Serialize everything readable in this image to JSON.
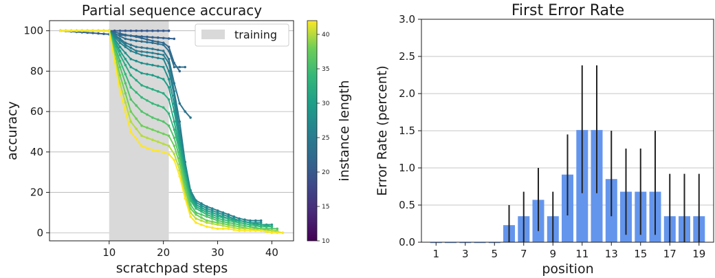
{
  "chart_data": [
    {
      "type": "line",
      "title": "Partial sequence accuracy",
      "xlabel": "scratchpad steps",
      "ylabel": "accuracy",
      "xlim": [
        -1,
        44
      ],
      "ylim": [
        -4,
        105
      ],
      "xticks": [
        10,
        20,
        30,
        40
      ],
      "yticks": [
        0,
        20,
        40,
        60,
        80,
        100
      ],
      "grid": "horizontal",
      "legend": {
        "placement": "top-right",
        "entries": [
          "training"
        ]
      },
      "training_region": [
        10,
        21
      ],
      "colorbar": {
        "label": "instance length",
        "range": [
          10,
          42
        ],
        "ticks": [
          10,
          15,
          20,
          25,
          30,
          35,
          40
        ],
        "colormap": "viridis"
      },
      "series": [
        {
          "length": 20,
          "x": [
            1,
            21
          ],
          "values": [
            100,
            100
          ]
        },
        {
          "length": 21,
          "x": [
            1,
            22
          ],
          "values": [
            100,
            96
          ]
        },
        {
          "length": 22,
          "x": [
            1,
            10,
            13,
            15,
            18,
            20,
            21,
            22,
            23
          ],
          "values": [
            100,
            100,
            98,
            97,
            95,
            94,
            92,
            84,
            80
          ]
        },
        {
          "length": 23,
          "x": [
            1,
            10,
            13,
            15,
            18,
            20,
            21,
            22,
            23,
            24
          ],
          "values": [
            100,
            100,
            96,
            95,
            94,
            93,
            90,
            82,
            82,
            82
          ]
        },
        {
          "length": 24,
          "x": [
            1,
            10,
            13,
            15,
            18,
            20,
            21,
            22,
            23,
            24,
            25
          ],
          "values": [
            100,
            100,
            94,
            92,
            91,
            90,
            86,
            74,
            64,
            60,
            57
          ]
        },
        {
          "length": 25,
          "x": [
            1,
            10,
            13,
            15,
            18,
            20,
            21,
            22,
            23,
            24,
            25,
            26
          ],
          "values": [
            100,
            100,
            93,
            90,
            89,
            88,
            84,
            70,
            55,
            35,
            20,
            14
          ]
        },
        {
          "length": 26,
          "x": [
            1,
            10,
            12,
            14,
            16,
            18,
            20,
            21,
            22,
            23,
            24,
            25,
            26,
            28,
            30,
            32,
            34,
            36,
            38
          ],
          "values": [
            100,
            100,
            94,
            90,
            88,
            87,
            86,
            80,
            68,
            50,
            35,
            21,
            16,
            13,
            11,
            9,
            7,
            6,
            6
          ]
        },
        {
          "length": 28,
          "x": [
            1,
            10,
            12,
            14,
            16,
            18,
            20,
            21,
            22,
            23,
            24,
            25,
            26,
            28,
            30,
            32,
            34,
            36,
            38
          ],
          "values": [
            100,
            100,
            92,
            86,
            84,
            83,
            82,
            76,
            64,
            48,
            33,
            20,
            15,
            12,
            10,
            8,
            6,
            5,
            5
          ]
        },
        {
          "length": 30,
          "x": [
            1,
            10,
            12,
            14,
            16,
            18,
            20,
            21,
            22,
            23,
            24,
            25,
            26,
            28,
            30,
            32,
            34,
            36,
            38,
            40
          ],
          "values": [
            100,
            100,
            90,
            82,
            79,
            78,
            76,
            72,
            60,
            45,
            31,
            18,
            14,
            11,
            9,
            7,
            6,
            5,
            4,
            4
          ]
        },
        {
          "length": 32,
          "x": [
            1,
            10,
            12,
            14,
            16,
            18,
            20,
            21,
            22,
            23,
            24,
            25,
            26,
            28,
            30,
            32,
            34,
            36,
            38,
            40
          ],
          "values": [
            100,
            100,
            88,
            78,
            73,
            71,
            69,
            66,
            55,
            42,
            29,
            17,
            13,
            10,
            8,
            7,
            5,
            4,
            4,
            3
          ]
        },
        {
          "length": 34,
          "x": [
            1,
            10,
            12,
            14,
            16,
            18,
            20,
            21,
            22,
            23,
            24,
            25,
            26,
            28,
            30,
            32,
            34,
            36,
            38,
            40
          ],
          "values": [
            100,
            100,
            85,
            72,
            67,
            64,
            62,
            59,
            51,
            40,
            27,
            16,
            12,
            9,
            7,
            6,
            5,
            4,
            3,
            3
          ]
        },
        {
          "length": 36,
          "x": [
            1,
            10,
            12,
            14,
            16,
            18,
            20,
            21,
            22,
            23,
            24,
            25,
            26,
            28,
            30,
            32,
            34,
            36,
            38,
            40,
            41
          ],
          "values": [
            100,
            100,
            82,
            66,
            60,
            57,
            55,
            53,
            47,
            37,
            25,
            14,
            10,
            8,
            6,
            5,
            4,
            3,
            2,
            2,
            2
          ]
        },
        {
          "length": 38,
          "x": [
            1,
            10,
            12,
            14,
            16,
            18,
            20,
            21,
            22,
            23,
            24,
            25,
            26,
            28,
            30,
            32,
            34,
            36,
            38,
            40,
            41
          ],
          "values": [
            100,
            100,
            78,
            60,
            53,
            51,
            49,
            48,
            43,
            34,
            22,
            12,
            9,
            6,
            5,
            4,
            3,
            2,
            2,
            1,
            1
          ]
        },
        {
          "length": 40,
          "x": [
            1,
            10,
            12,
            14,
            16,
            18,
            20,
            21,
            22,
            23,
            24,
            25,
            26,
            28,
            30,
            32,
            34,
            36,
            38,
            40,
            42
          ],
          "values": [
            100,
            100,
            74,
            55,
            48,
            46,
            44,
            43,
            39,
            31,
            19,
            10,
            7,
            5,
            4,
            3,
            2,
            2,
            1,
            1,
            0
          ]
        },
        {
          "length": 42,
          "x": [
            1,
            10,
            12,
            14,
            16,
            18,
            20,
            21,
            22,
            23,
            24,
            25,
            26,
            28,
            30,
            32,
            34,
            36,
            38,
            40,
            42
          ],
          "values": [
            100,
            100,
            70,
            50,
            43,
            41,
            40,
            39,
            36,
            28,
            17,
            8,
            5,
            3,
            2,
            2,
            1,
            1,
            1,
            0,
            0
          ]
        }
      ]
    },
    {
      "type": "bar",
      "title": "First Error Rate",
      "xlabel": "position",
      "ylabel": "Error Rate (percent)",
      "ylim": [
        0,
        3.0
      ],
      "yticks": [
        "0.0",
        "0.5",
        "1.0",
        "1.5",
        "2.0",
        "2.5",
        "3.0"
      ],
      "grid": "horizontal",
      "bar_color": "#6495ed",
      "categories": [
        1,
        2,
        3,
        4,
        5,
        6,
        7,
        8,
        9,
        10,
        11,
        12,
        13,
        14,
        15,
        16,
        17,
        18,
        19
      ],
      "xtick_labels": [
        "1",
        "3",
        "5",
        "7",
        "9",
        "11",
        "13",
        "15",
        "17",
        "19"
      ],
      "values": [
        0.0,
        0.0,
        0.0,
        0.0,
        0.0,
        0.23,
        0.35,
        0.57,
        0.35,
        0.91,
        1.51,
        1.51,
        0.85,
        0.68,
        0.68,
        0.68,
        0.35,
        0.35,
        0.35
      ],
      "error_low": [
        0.0,
        0.0,
        0.0,
        0.0,
        0.0,
        0.0,
        0.0,
        0.15,
        0.0,
        0.36,
        0.66,
        0.66,
        0.35,
        0.1,
        0.1,
        0.1,
        0.0,
        0.0,
        0.0
      ],
      "error_high": [
        0.0,
        0.0,
        0.0,
        0.0,
        0.0,
        0.5,
        0.68,
        1.0,
        0.68,
        1.45,
        2.38,
        2.38,
        1.5,
        1.26,
        1.26,
        1.5,
        0.92,
        0.92,
        0.92
      ]
    }
  ]
}
